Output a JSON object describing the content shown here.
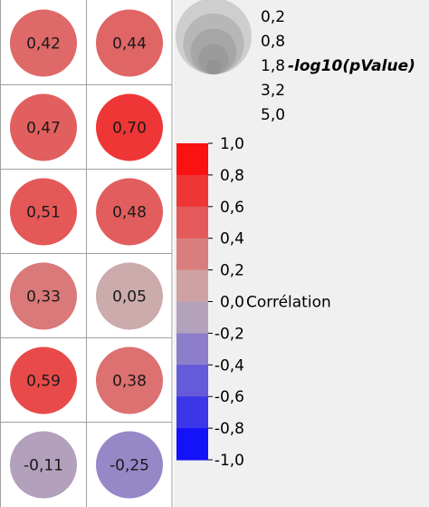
{
  "chart_data": {
    "type": "heatmap",
    "title": "",
    "xlabel": "",
    "ylabel": "",
    "grid": true,
    "rows": 6,
    "columns": 2,
    "correlation_values": [
      [
        0.42,
        0.44
      ],
      [
        0.47,
        0.7
      ],
      [
        0.51,
        0.48
      ],
      [
        0.33,
        0.05
      ],
      [
        0.59,
        0.38
      ],
      [
        -0.11,
        -0.25
      ]
    ],
    "cell_labels": [
      [
        "0,42",
        "0,44"
      ],
      [
        "0,47",
        "0,70"
      ],
      [
        "0,51",
        "0,48"
      ],
      [
        "0,33",
        "0,05"
      ],
      [
        "0,59",
        "0,38"
      ],
      [
        "-0,11",
        "-0,25"
      ]
    ],
    "size_legend": {
      "title": "-log10(pValue)",
      "values": [
        0.2,
        0.8,
        1.8,
        3.2,
        5.0
      ],
      "labels": [
        "0,2",
        "0,8",
        "1,8",
        "3,2",
        "5,0"
      ],
      "placement": "top-right"
    },
    "color_legend": {
      "title": "Corrélation",
      "range": [
        -1.0,
        1.0
      ],
      "tick_values": [
        1.0,
        0.8,
        0.6,
        0.4,
        0.2,
        0.0,
        -0.2,
        -0.4,
        -0.6,
        -0.8,
        -1.0
      ],
      "tick_labels": [
        "1,0",
        "0,8",
        "0,6",
        "0,4",
        "0,2",
        "0,0",
        "-0,2",
        "-0,4",
        "-0,6",
        "-0,8",
        "-1,0"
      ],
      "placement": "right"
    },
    "colors": {
      "strong_positive": "#ff0000",
      "neutral": "#c8b4b4",
      "strong_negative": "#0000ff",
      "grid_line": "#a0a0a0",
      "legend_background": "#f0f0f0",
      "size_swatch": "#808080"
    }
  }
}
